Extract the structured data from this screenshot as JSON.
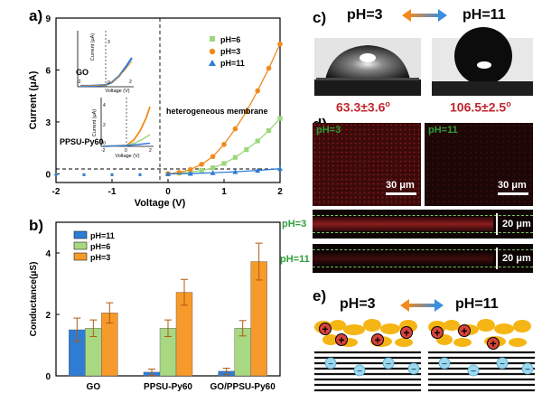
{
  "panels": {
    "a": "a)",
    "b": "b)",
    "c": "c)",
    "d": "d)",
    "e": "e)"
  },
  "chart_data": [
    {
      "type": "scatter",
      "id": "a",
      "xlabel": "Voltage (V)",
      "ylabel": "Current (μA)",
      "xlim": [
        -2,
        2
      ],
      "ylim": [
        -0.5,
        9
      ],
      "xticks": [
        "-2",
        "-1",
        "0",
        "1",
        "2"
      ],
      "yticks": [
        "0",
        "3",
        "6",
        "9"
      ],
      "annotation": "heterogeneous membrane",
      "series": [
        {
          "name": "pH=6",
          "color": "#9dd77d",
          "marker": "square",
          "x": [
            0,
            0.2,
            0.4,
            0.6,
            0.8,
            1.0,
            1.2,
            1.4,
            1.6,
            1.8,
            2.0
          ],
          "y": [
            0,
            0.04,
            0.1,
            0.2,
            0.35,
            0.6,
            0.95,
            1.4,
            1.9,
            2.5,
            3.2
          ]
        },
        {
          "name": "pH=3",
          "color": "#f18a1d",
          "marker": "circle",
          "x": [
            0,
            0.2,
            0.4,
            0.6,
            0.8,
            1.0,
            1.2,
            1.4,
            1.6,
            1.8,
            2.0
          ],
          "y": [
            0,
            0.08,
            0.25,
            0.55,
            1.0,
            1.7,
            2.6,
            3.6,
            4.8,
            6.1,
            7.5
          ]
        },
        {
          "name": "pH=11",
          "color": "#2f7cd6",
          "marker": "triangle",
          "x": [
            0,
            0.4,
            0.8,
            1.2,
            1.6,
            2.0
          ],
          "y": [
            0,
            0.02,
            0.06,
            0.12,
            0.2,
            0.3
          ]
        }
      ],
      "insets": [
        {
          "label": "GO",
          "ylabel": "Current (μA)",
          "xlabel": "Voltage (V)",
          "yticks": [
            "0",
            "3"
          ],
          "xticks": [
            "-2",
            "0",
            "2"
          ]
        },
        {
          "label": "PPSU-Py60",
          "ylabel": "Current (μA)",
          "xlabel": "Voltage (V)",
          "yticks": [
            "0",
            "2",
            "4"
          ],
          "xticks": [
            "-2",
            "0",
            "2"
          ]
        }
      ]
    },
    {
      "type": "bar",
      "id": "b",
      "categories": [
        "GO",
        "PPSU-Py60",
        "GO/PPSU-Py60"
      ],
      "ylabel": "Conductance(μS)",
      "ylim": [
        0,
        5
      ],
      "yticks": [
        "0",
        "2",
        "4"
      ],
      "series": [
        {
          "name": "pH=11",
          "color": "#2f7cd6",
          "values": [
            1.5,
            0.12,
            0.15
          ],
          "errors": [
            0.38,
            0.1,
            0.1
          ]
        },
        {
          "name": "pH=6",
          "color": "#a8d882",
          "values": [
            1.55,
            1.55,
            1.55
          ],
          "errors": [
            0.27,
            0.27,
            0.25
          ]
        },
        {
          "name": "pH=3",
          "color": "#f59a2b",
          "values": [
            2.05,
            2.72,
            3.72
          ],
          "errors": [
            0.33,
            0.42,
            0.6
          ]
        }
      ]
    }
  ],
  "panel_c": {
    "left_ph": "pH=3",
    "right_ph": "pH=11",
    "left_angle": "63.3±3.6",
    "right_angle": "106.5±2.5",
    "degree": "o"
  },
  "panel_d": {
    "top_left": "pH=3",
    "top_right": "pH=11",
    "scale": "30 μm",
    "row1": "pH=3",
    "row2": "pH=11",
    "depth": "20 μm"
  },
  "panel_e": {
    "left_ph": "pH=3",
    "right_ph": "pH=11",
    "plus": "+",
    "minus": "−"
  }
}
